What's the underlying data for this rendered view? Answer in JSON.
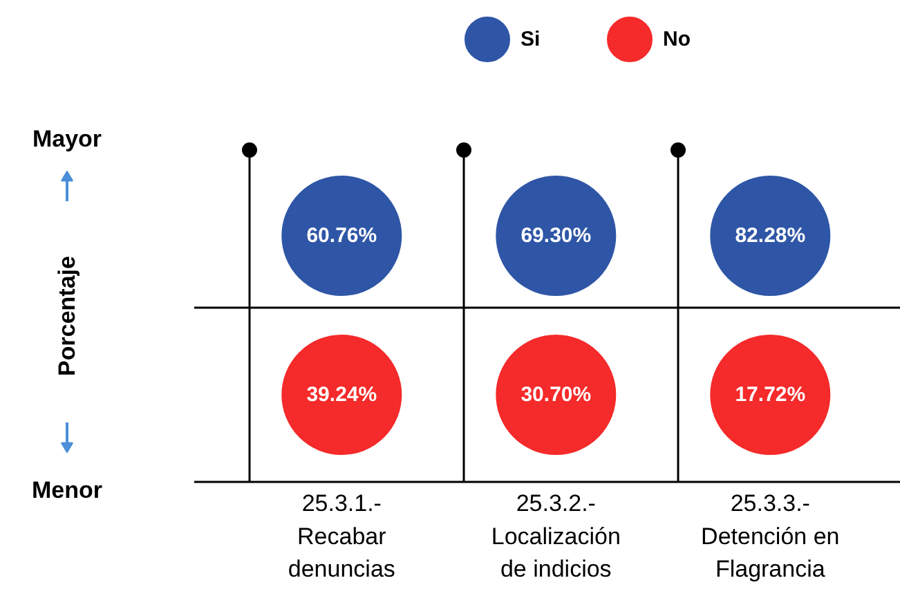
{
  "chart_data": {
    "type": "other",
    "categories": [
      "25.3.1.-\nRecabar\ndenuncias",
      "25.3.2.-\nLocalización\nde indicios",
      "25.3.3.-\nDetención en\nFlagrancia"
    ],
    "series": [
      {
        "name": "Si",
        "color": "#2f56a6",
        "values": [
          60.76,
          69.3,
          82.28
        ],
        "value_labels": [
          "60.76%",
          "69.30%",
          "82.28%"
        ]
      },
      {
        "name": "No",
        "color": "#f52a2a",
        "values": [
          39.24,
          30.7,
          17.72
        ],
        "value_labels": [
          "39.24%",
          "30.70%",
          "17.72%"
        ]
      }
    ],
    "ylabel": "Porcentaje",
    "annotations": [
      "Mayor",
      "Menor"
    ],
    "legend": "top"
  }
}
